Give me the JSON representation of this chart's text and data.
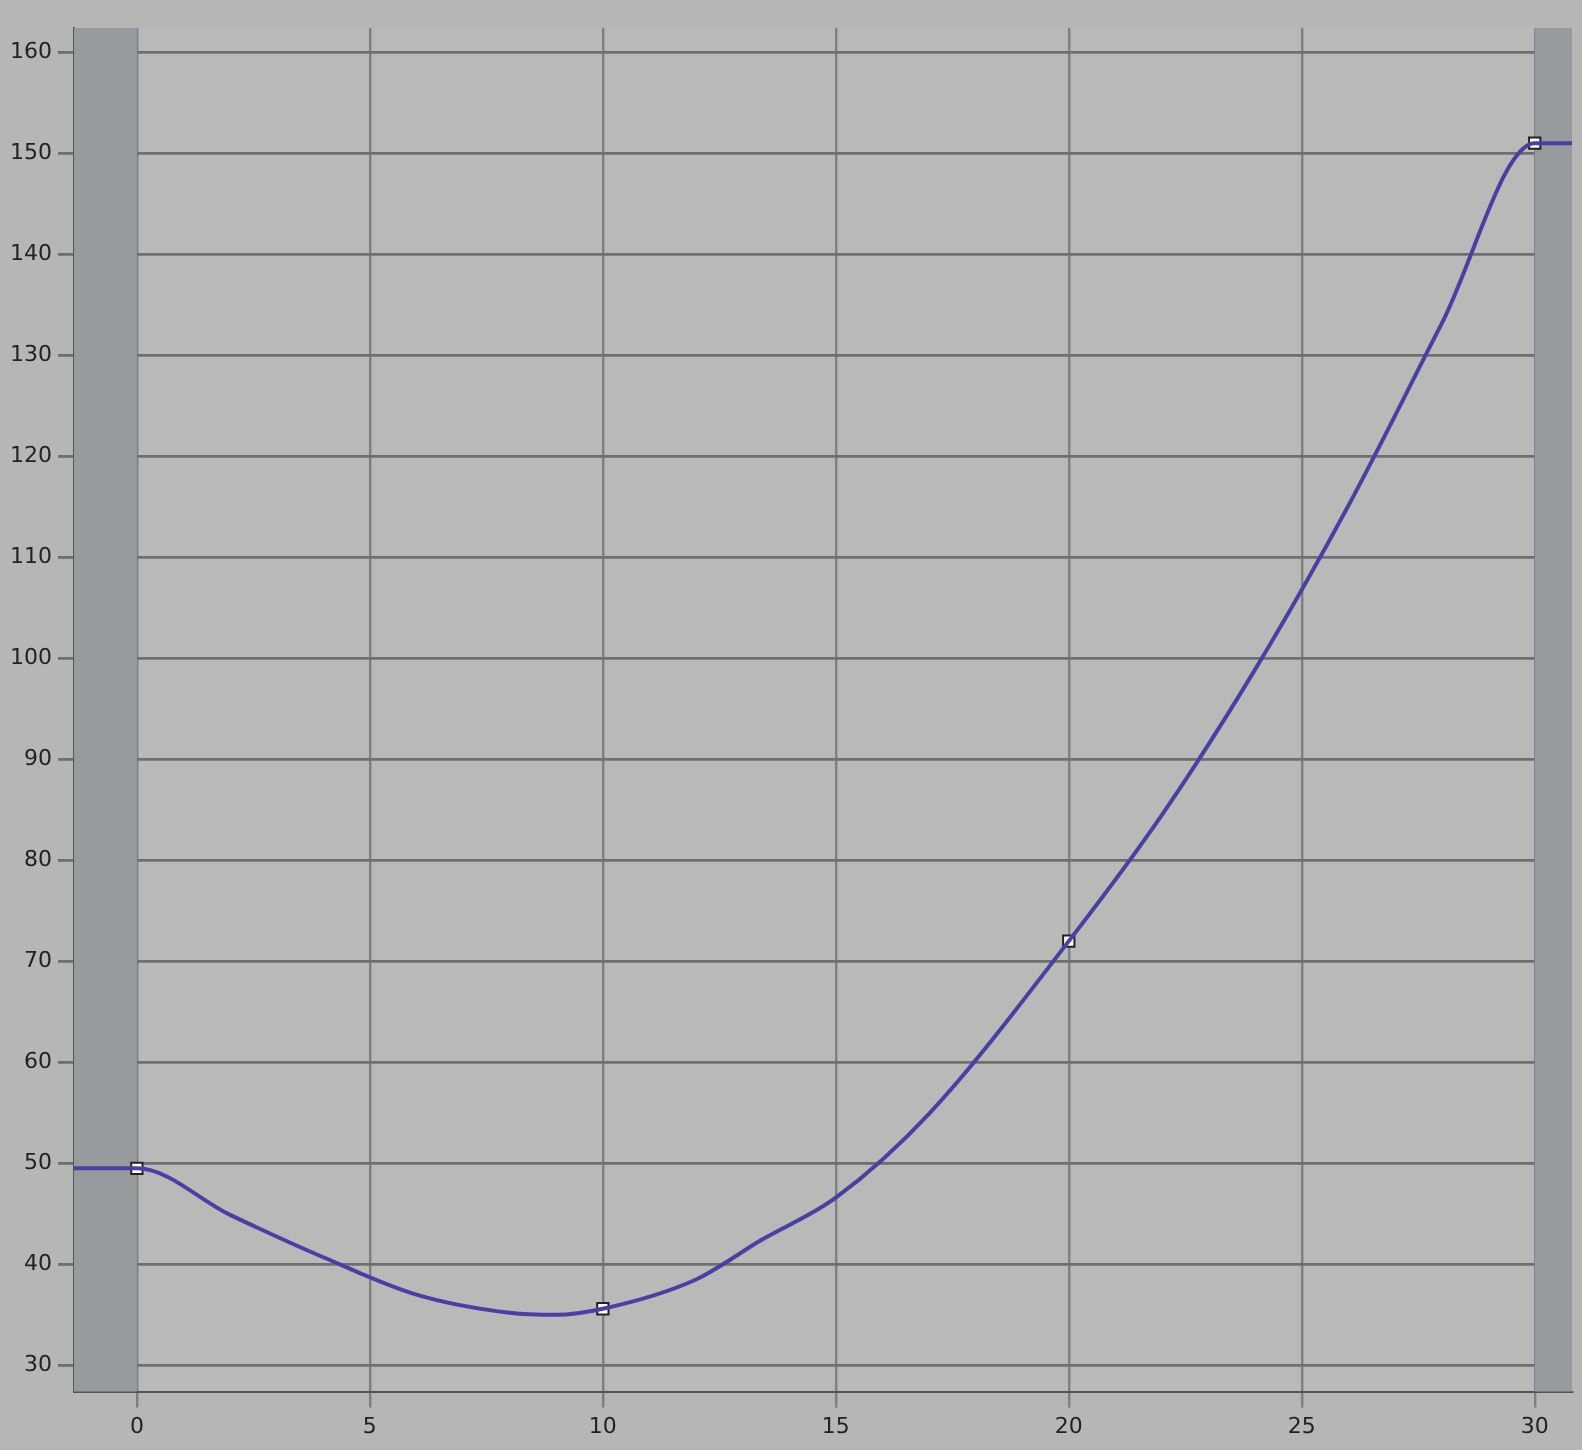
{
  "chart_data": {
    "type": "line",
    "xlim": [
      -1.35,
      30.8
    ],
    "ylim": [
      27.4,
      162.4
    ],
    "xticks": [
      0,
      5,
      10,
      15,
      20,
      25,
      30
    ],
    "yticks": [
      30,
      40,
      50,
      60,
      70,
      80,
      90,
      100,
      110,
      120,
      130,
      140,
      150,
      160
    ],
    "grid": true,
    "series": [
      {
        "color": "#4b3fa6",
        "marker": "none",
        "x": [
          -1.35,
          0,
          2,
          4,
          6,
          8,
          9,
          10,
          12,
          13.4,
          15,
          17,
          20,
          22,
          24,
          26,
          28,
          30,
          30.8
        ],
        "values": [
          49.5,
          49.5,
          44.9,
          40.7,
          37,
          35.2,
          35,
          35.6,
          38.5,
          42.4,
          46.6,
          54.9,
          72,
          84.5,
          98.9,
          115.1,
          133.1,
          151,
          151
        ]
      },
      {
        "type": "scatter",
        "color": "#ffffff",
        "marker": "square",
        "x": [
          0,
          10,
          20,
          30
        ],
        "values": [
          49.5,
          35.6,
          72,
          151
        ]
      }
    ],
    "bands": [
      {
        "axis": "x",
        "from": -1.35,
        "to": 0,
        "color": "#979b9e"
      },
      {
        "axis": "x",
        "from": 30,
        "to": 30.8,
        "color": "#979b9e"
      }
    ]
  }
}
